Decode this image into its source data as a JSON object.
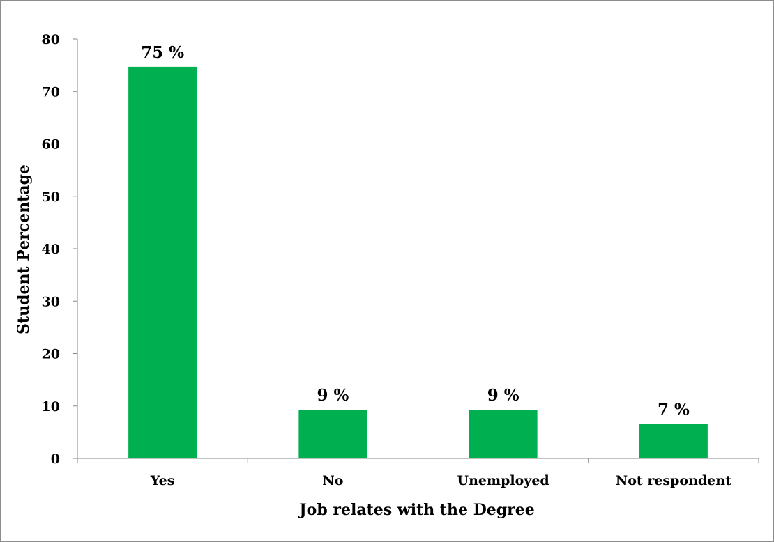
{
  "chart_data": {
    "type": "bar",
    "categories": [
      "Yes",
      "No",
      "Unemployed",
      "Not respondent"
    ],
    "values": [
      74.7,
      9.3,
      9.3,
      6.6
    ],
    "data_labels": [
      "75 %",
      "9 %",
      "9 %",
      "7 %"
    ],
    "title": "",
    "xlabel": "Job relates with the Degree",
    "ylabel": "Student Percentage",
    "ylim": [
      0,
      80
    ],
    "yticks": [
      0,
      10,
      20,
      30,
      40,
      50,
      60,
      70,
      80
    ],
    "grid": false,
    "legend": "none",
    "bar_color": "#00B050",
    "axis_color": "#868686"
  }
}
